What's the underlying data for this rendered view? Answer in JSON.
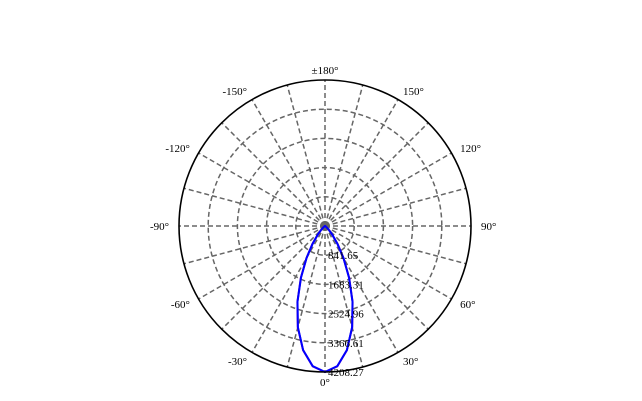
{
  "chart_data": {
    "type": "polar",
    "angle_zero": "bottom",
    "angle_labels": [
      {
        "deg": 0,
        "label": "0°"
      },
      {
        "deg": 30,
        "label": "30°"
      },
      {
        "deg": 60,
        "label": "60°"
      },
      {
        "deg": 90,
        "label": "90°"
      },
      {
        "deg": 120,
        "label": "120°"
      },
      {
        "deg": 150,
        "label": "150°"
      },
      {
        "deg": 180,
        "label": "±180°"
      },
      {
        "deg": -150,
        "label": "-150°"
      },
      {
        "deg": -120,
        "label": "-120°"
      },
      {
        "deg": -90,
        "label": "-90°"
      },
      {
        "deg": -60,
        "label": "-60°"
      },
      {
        "deg": -30,
        "label": "-30°"
      }
    ],
    "radial_ticks": [
      "841.65",
      "1683.31",
      "2524.96",
      "3366.61",
      "4208.27"
    ],
    "rmax": 4208.27,
    "grid": true,
    "spoke_step_deg": 15,
    "series": [
      {
        "color": "#8000a0",
        "angles": [
          -90,
          -70,
          -60,
          -50,
          -45,
          -40,
          -35,
          -30,
          -25,
          -20,
          -15,
          -10,
          -5,
          0,
          5,
          10,
          15,
          20,
          25,
          30,
          35,
          40,
          45,
          50,
          60,
          70,
          90
        ],
        "values": [
          0,
          0,
          6,
          63,
          156,
          334,
          633,
          1074,
          1652,
          2330,
          3027,
          3638,
          4058,
          4208,
          4058,
          3638,
          3027,
          2330,
          1652,
          1074,
          633,
          334,
          156,
          63,
          6,
          0,
          0
        ]
      },
      {
        "color": "#0000ff",
        "angles": [
          -90,
          -70,
          -60,
          -50,
          -45,
          -40,
          -35,
          -30,
          -25,
          -20,
          -15,
          -10,
          -5,
          0,
          5,
          10,
          15,
          20,
          25,
          30,
          35,
          40,
          45,
          50,
          60,
          70,
          90
        ],
        "values": [
          0,
          0,
          6,
          60,
          150,
          325,
          620,
          1060,
          1640,
          2320,
          3020,
          3630,
          4055,
          4208,
          4055,
          3630,
          3020,
          2320,
          1640,
          1060,
          620,
          325,
          150,
          60,
          6,
          0,
          0
        ]
      }
    ]
  }
}
